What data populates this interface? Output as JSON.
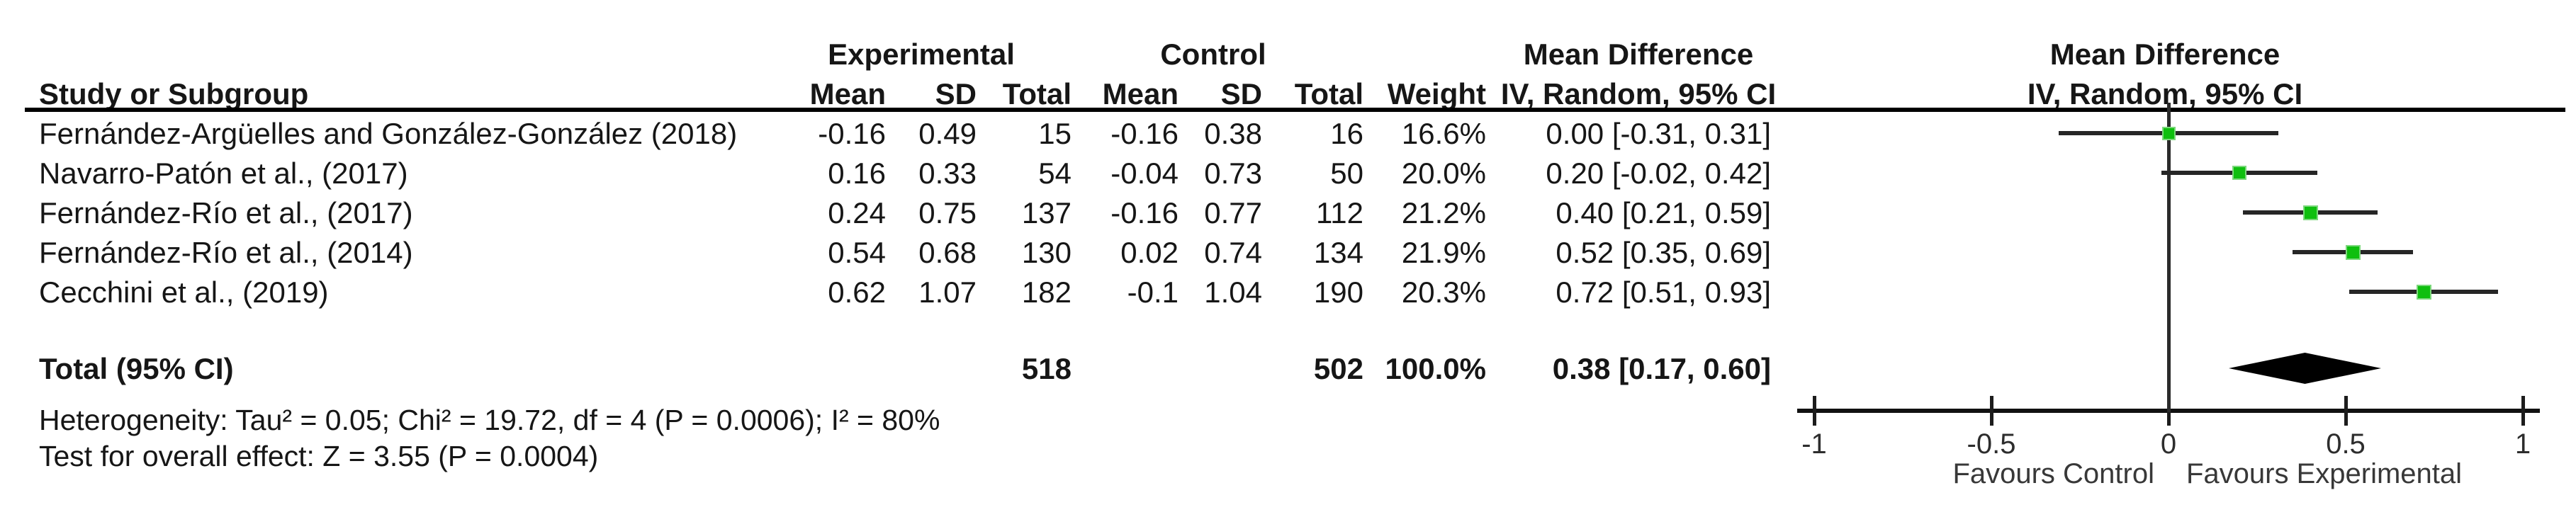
{
  "table": {
    "group_headers": {
      "experimental": "Experimental",
      "control": "Control",
      "mean_difference": "Mean Difference"
    },
    "col_headers": {
      "study": "Study or Subgroup",
      "exp_mean": "Mean",
      "exp_sd": "SD",
      "exp_total": "Total",
      "ctrl_mean": "Mean",
      "ctrl_sd": "SD",
      "ctrl_total": "Total",
      "weight": "Weight",
      "method_ci": "IV, Random, 95% CI"
    },
    "rows": [
      {
        "study": "Fernández-Argüelles and González-González (2018)",
        "exp_mean": "-0.16",
        "exp_sd": "0.49",
        "exp_total": "15",
        "ctrl_mean": "-0.16",
        "ctrl_sd": "0.38",
        "ctrl_total": "16",
        "weight": "16.6%",
        "ci": "0.00 [-0.31, 0.31]"
      },
      {
        "study": "Navarro-Patón et al., (2017)",
        "exp_mean": "0.16",
        "exp_sd": "0.33",
        "exp_total": "54",
        "ctrl_mean": "-0.04",
        "ctrl_sd": "0.73",
        "ctrl_total": "50",
        "weight": "20.0%",
        "ci": "0.20 [-0.02, 0.42]"
      },
      {
        "study": "Fernández-Río et al., (2017)",
        "exp_mean": "0.24",
        "exp_sd": "0.75",
        "exp_total": "137",
        "ctrl_mean": "-0.16",
        "ctrl_sd": "0.77",
        "ctrl_total": "112",
        "weight": "21.2%",
        "ci": "0.40 [0.21, 0.59]"
      },
      {
        "study": "Fernández-Río et al., (2014)",
        "exp_mean": "0.54",
        "exp_sd": "0.68",
        "exp_total": "130",
        "ctrl_mean": "0.02",
        "ctrl_sd": "0.74",
        "ctrl_total": "134",
        "weight": "21.9%",
        "ci": "0.52 [0.35, 0.69]"
      },
      {
        "study": "Cecchini et al., (2019)",
        "exp_mean": "0.62",
        "exp_sd": "1.07",
        "exp_total": "182",
        "ctrl_mean": "-0.1",
        "ctrl_sd": "1.04",
        "ctrl_total": "190",
        "weight": "20.3%",
        "ci": "0.72 [0.51, 0.93]"
      }
    ],
    "total": {
      "label": "Total (95% CI)",
      "exp_total": "518",
      "ctrl_total": "502",
      "weight": "100.0%",
      "ci": "0.38 [0.17, 0.60]"
    },
    "heterogeneity": "Heterogeneity: Tau² = 0.05; Chi² = 19.72, df = 4 (P = 0.0006); I² = 80%",
    "overall_effect": "Test for overall effect: Z = 3.55 (P = 0.0004)"
  },
  "plot": {
    "header_line1": "Mean Difference",
    "header_line2": "IV, Random, 95% CI",
    "axis_ticks": [
      "-1",
      "-0.5",
      "0",
      "0.5",
      "1"
    ],
    "favours_left": "Favours Control",
    "favours_right": "Favours Experimental",
    "square_color": "#0fbf0f",
    "diamond_color": "#000000"
  },
  "chart_data": {
    "type": "forest",
    "title": "Mean Difference, IV, Random, 95% CI",
    "xlim": [
      -1,
      1
    ],
    "x_ticks": [
      -1,
      -0.5,
      0,
      0.5,
      1
    ],
    "zero_line": 0,
    "studies": [
      {
        "name": "Fernández-Argüelles and González-González (2018)",
        "md": 0.0,
        "ci_low": -0.31,
        "ci_high": 0.31,
        "weight_pct": 16.6
      },
      {
        "name": "Navarro-Patón et al., (2017)",
        "md": 0.2,
        "ci_low": -0.02,
        "ci_high": 0.42,
        "weight_pct": 20.0
      },
      {
        "name": "Fernández-Río et al., (2017)",
        "md": 0.4,
        "ci_low": 0.21,
        "ci_high": 0.59,
        "weight_pct": 21.2
      },
      {
        "name": "Fernández-Río et al., (2014)",
        "md": 0.52,
        "ci_low": 0.35,
        "ci_high": 0.69,
        "weight_pct": 21.9
      },
      {
        "name": "Cecchini et al., (2019)",
        "md": 0.72,
        "ci_low": 0.51,
        "ci_high": 0.93,
        "weight_pct": 20.3
      }
    ],
    "overall": {
      "md": 0.38,
      "ci_low": 0.17,
      "ci_high": 0.6,
      "weight_pct": 100.0
    },
    "favours_left_label": "Favours Control",
    "favours_right_label": "Favours Experimental"
  }
}
